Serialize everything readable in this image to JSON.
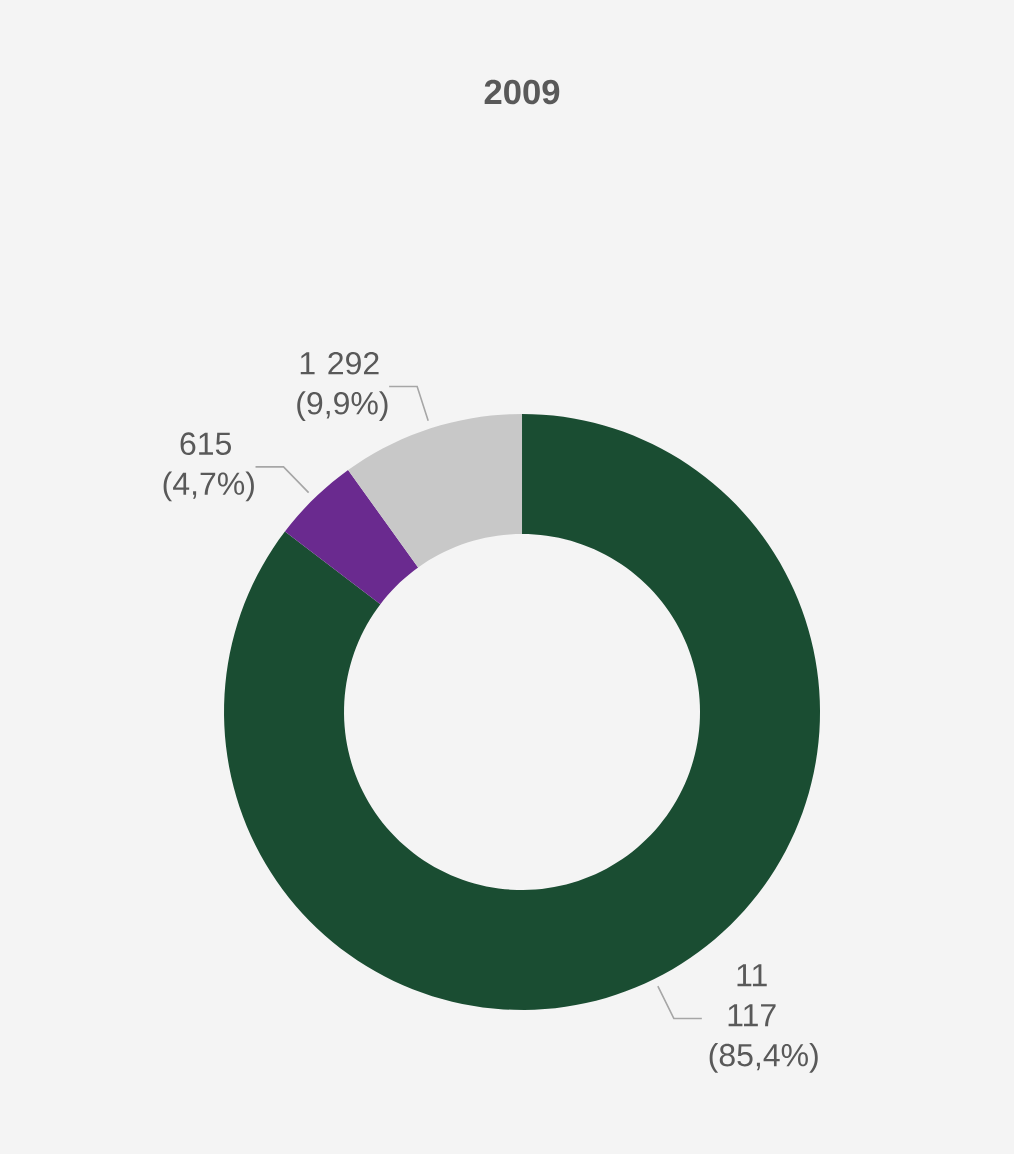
{
  "chart_data": {
    "type": "donut",
    "title": "2009",
    "categories": [
      null,
      null,
      null
    ],
    "values": [
      11117,
      615,
      1292
    ],
    "colors": [
      "#1a4d32",
      "#6a2a8f",
      "#c8c8c8"
    ],
    "value_labels": [
      "11 117 (85,4%)",
      "615 (4,7%)",
      "1 292 (9,9%)"
    ]
  }
}
